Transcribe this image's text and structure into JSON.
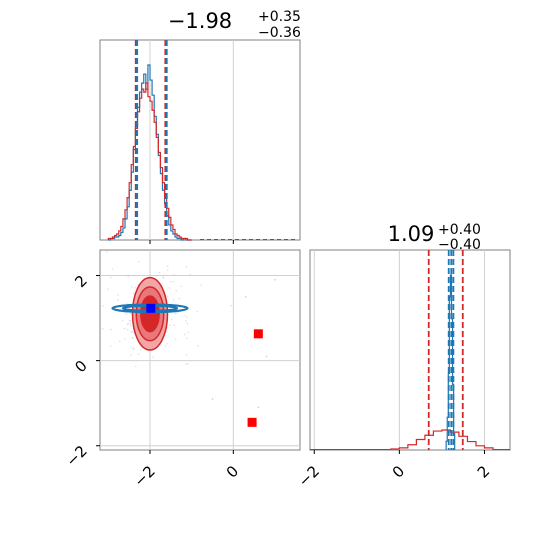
{
  "chart_data": [
    {
      "panel": "marginal-x",
      "type": "histogram",
      "title": {
        "value": "−1.98",
        "sup": "+0.35",
        "sub": "−0.36"
      },
      "xlim": [
        -3.2,
        1.6
      ],
      "grid": true,
      "series": [
        {
          "name": "",
          "color": "#1f77b4",
          "bins": [
            -3.0,
            -2.95,
            -2.9,
            -2.85,
            -2.8,
            -2.75,
            -2.7,
            -2.65,
            -2.6,
            -2.55,
            -2.5,
            -2.45,
            -2.4,
            -2.35,
            -2.3,
            -2.25,
            -2.2,
            -2.15,
            -2.1,
            -2.05,
            -2.0,
            -1.95,
            -1.9,
            -1.85,
            -1.8,
            -1.75,
            -1.7,
            -1.65,
            -1.6,
            -1.55,
            -1.5,
            -1.45,
            -1.4,
            -1.35,
            -1.3,
            -1.25,
            -1.2,
            -1.15,
            -1.1,
            -1.05,
            -1.0
          ],
          "counts": [
            0,
            1,
            1,
            2,
            2,
            3,
            5,
            8,
            14,
            22,
            33,
            45,
            60,
            75,
            88,
            98,
            104,
            110,
            100,
            116,
            106,
            96,
            82,
            70,
            56,
            44,
            33,
            24,
            16,
            10,
            6,
            4,
            2,
            1,
            1,
            0,
            1,
            0,
            0,
            0
          ]
        },
        {
          "name": "",
          "color": "#d62728",
          "bins": [
            -3.0,
            -2.95,
            -2.9,
            -2.85,
            -2.8,
            -2.75,
            -2.7,
            -2.65,
            -2.6,
            -2.55,
            -2.5,
            -2.45,
            -2.4,
            -2.35,
            -2.3,
            -2.25,
            -2.2,
            -2.15,
            -2.1,
            -2.05,
            -2.0,
            -1.95,
            -1.9,
            -1.85,
            -1.8,
            -1.75,
            -1.7,
            -1.65,
            -1.6,
            -1.55,
            -1.5,
            -1.45,
            -1.4,
            -1.35,
            -1.3,
            -1.25,
            -1.2,
            -1.15,
            -1.1,
            -1.05,
            -1.0
          ],
          "counts": [
            1,
            1,
            2,
            3,
            4,
            6,
            9,
            14,
            20,
            28,
            38,
            50,
            62,
            74,
            85,
            94,
            100,
            98,
            104,
            95,
            92,
            86,
            78,
            68,
            58,
            48,
            38,
            29,
            21,
            15,
            10,
            7,
            4,
            3,
            2,
            1,
            1,
            1,
            0,
            0
          ]
        }
      ],
      "quantile_lines": [
        {
          "x": -2.34,
          "color": "#d62728"
        },
        {
          "x": -2.31,
          "color": "#1f77b4"
        },
        {
          "x": -1.63,
          "color": "#d62728"
        },
        {
          "x": -1.6,
          "color": "#1f77b4"
        }
      ]
    },
    {
      "panel": "joint",
      "type": "contour",
      "xlim": [
        -3.2,
        1.6
      ],
      "ylim": [
        -2.1,
        2.6
      ],
      "xticks": [
        "−2",
        "0"
      ],
      "yticks": [
        "2",
        "0",
        "−2"
      ],
      "grid": true,
      "red_contours": [
        {
          "cx": -2.0,
          "cy": 1.1,
          "rx": 0.42,
          "ry": 0.85,
          "fill": "#f2a6a6"
        },
        {
          "cx": -2.0,
          "cy": 1.1,
          "rx": 0.33,
          "ry": 0.63,
          "fill": "#e8787b"
        },
        {
          "cx": -2.0,
          "cy": 1.1,
          "rx": 0.22,
          "ry": 0.42,
          "fill": "#d62728"
        }
      ],
      "blue_contours": [
        {
          "cx": -2.0,
          "cy": 1.23,
          "rx": 0.9,
          "ry": 0.09
        },
        {
          "cx": -2.0,
          "cy": 1.23,
          "rx": 0.65,
          "ry": 0.06
        }
      ],
      "markers": [
        {
          "x": -1.98,
          "y": 1.23,
          "color": "#0000ff"
        },
        {
          "x": 0.6,
          "y": 0.63,
          "color": "#ff0000"
        },
        {
          "x": 0.45,
          "y": -1.45,
          "color": "#ff0000"
        }
      ]
    },
    {
      "panel": "marginal-y",
      "type": "histogram",
      "title": {
        "value": "1.09",
        "sup": "+0.40",
        "sub": "−0.40"
      },
      "xlim": [
        -2.1,
        2.6
      ],
      "xticks": [
        "−2",
        "0",
        "2"
      ],
      "grid": true,
      "series": [
        {
          "name": "",
          "color": "#1f77b4",
          "bins": [
            1.1,
            1.125,
            1.15,
            1.175,
            1.2,
            1.225,
            1.25,
            1.275,
            1.3
          ],
          "counts": [
            8,
            30,
            70,
            140,
            160,
            120,
            60,
            15
          ]
        },
        {
          "name": "",
          "color": "#d62728",
          "bins": [
            -0.2,
            0.0,
            0.2,
            0.4,
            0.6,
            0.8,
            1.0,
            1.2,
            1.4,
            1.6,
            1.8,
            2.0,
            2.2
          ],
          "counts": [
            1,
            2,
            5,
            10,
            14,
            18,
            19,
            17,
            13,
            8,
            4,
            2
          ]
        }
      ],
      "quantile_lines": [
        {
          "x": 0.69,
          "color": "#d62728"
        },
        {
          "x": 1.49,
          "color": "#d62728"
        },
        {
          "x": 1.16,
          "color": "#1f77b4"
        },
        {
          "x": 1.22,
          "color": "#1f77b4"
        },
        {
          "x": 1.27,
          "color": "#1f77b4"
        }
      ]
    }
  ]
}
